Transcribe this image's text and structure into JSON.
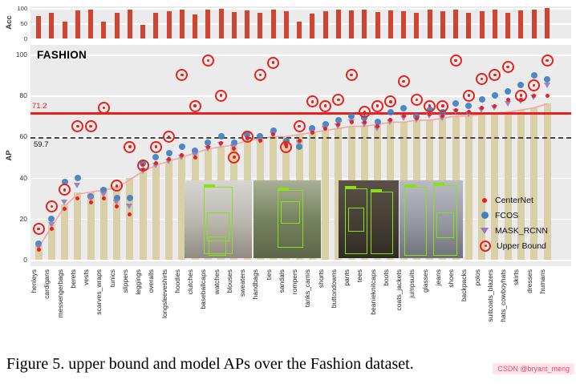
{
  "figure": {
    "caption": "Figure 5. upper bound and model APs over the Fashion dataset.",
    "watermark": "CSDN @bryant_meng"
  },
  "chart_data": {
    "type": "bar+scatter",
    "title": "FASHION",
    "ylabel": "AP",
    "ylim": [
      0,
      100
    ],
    "yticks": [
      0,
      20,
      40,
      60,
      80,
      100
    ],
    "legend_position": "center-right",
    "categories": [
      "henleys",
      "cardigans",
      "messengerbags",
      "berets",
      "vests",
      "scarves_wraps",
      "tunics",
      "slippers",
      "leggings",
      "overalls",
      "longsleeveshirts",
      "hoodies",
      "clutches",
      "baseballcaps",
      "watches",
      "blouses",
      "sweaters",
      "handbags",
      "ties",
      "sandals",
      "rompers",
      "tanks_camis",
      "shorts",
      "buttondowns",
      "pants",
      "tees",
      "beanieknitcaps",
      "boots",
      "coats_jackets",
      "jumpsuits",
      "glasses",
      "jeans",
      "shoes",
      "backpacks",
      "polos",
      "suitcoats_blazers",
      "hats_cowboyhats",
      "skirts",
      "dresses",
      "humans"
    ],
    "ap_bars": {
      "name": "per-class AP bars",
      "color": "#d9d0a8",
      "values": [
        7,
        17,
        27,
        33,
        33,
        35,
        36,
        40,
        43,
        46,
        48,
        50,
        52,
        54,
        55,
        56,
        58,
        59,
        60,
        60,
        61,
        62,
        63,
        64,
        65,
        65,
        66,
        67,
        67,
        68,
        68,
        69,
        70,
        70,
        71,
        71,
        72,
        73,
        74,
        76
      ]
    },
    "trend_line": {
      "name": "AP trend line",
      "color": "#f0a8a2",
      "values": [
        6,
        16,
        26,
        32,
        33,
        34,
        35,
        39,
        43,
        46,
        48,
        50,
        52,
        54,
        55,
        56,
        58,
        59,
        60,
        60,
        61,
        62,
        63,
        64,
        65,
        65,
        66,
        67,
        67,
        68,
        68,
        69,
        70,
        70,
        71,
        71,
        72,
        73,
        74,
        76
      ]
    },
    "series": [
      {
        "name": "CenterNet",
        "marker": "small-dot",
        "color": "#e8211d",
        "values": [
          5,
          15,
          25,
          30,
          28,
          30,
          26,
          22,
          44,
          47,
          49,
          51,
          50,
          55,
          57,
          54,
          59,
          58,
          61,
          56,
          58,
          62,
          64,
          66,
          67,
          67,
          65,
          68,
          70,
          69,
          71,
          70,
          73,
          72,
          74,
          75,
          78,
          78,
          80,
          80
        ]
      },
      {
        "name": "FCOS",
        "marker": "dot",
        "color": "#3f7fbf",
        "values": [
          8,
          20,
          38,
          40,
          31,
          34,
          30,
          30,
          47,
          50,
          52,
          55,
          53,
          57,
          60,
          57,
          61,
          60,
          63,
          58,
          55,
          64,
          66,
          68,
          70,
          69,
          67,
          72,
          74,
          70,
          73,
          72,
          76,
          75,
          78,
          80,
          82,
          85,
          90,
          88
        ]
      },
      {
        "name": "MASK_RCNN",
        "marker": "triangle-down",
        "color": "#9379c2",
        "values": [
          6,
          17,
          28,
          36,
          30,
          32,
          28,
          26,
          43,
          46,
          48,
          50,
          51,
          54,
          56,
          55,
          59,
          58,
          61,
          56,
          57,
          62,
          64,
          65,
          67,
          66,
          64,
          67,
          69,
          68,
          70,
          69,
          72,
          71,
          73,
          74,
          76,
          77,
          79,
          85
        ]
      },
      {
        "name": "Upper Bound",
        "marker": "bullseye",
        "color": "#e8211d",
        "values": [
          15,
          26,
          34,
          65,
          65,
          74,
          36,
          55,
          46,
          55,
          60,
          90,
          75,
          97,
          80,
          50,
          60,
          90,
          96,
          55,
          65,
          77,
          75,
          78,
          90,
          72,
          75,
          77,
          87,
          78,
          75,
          75,
          97,
          80,
          88,
          90,
          94,
          80,
          85,
          97
        ]
      }
    ],
    "ref_lines": [
      {
        "label": "71.2",
        "value": 71.2,
        "style": "solid",
        "color": "#e8211d"
      },
      {
        "label": "59.7",
        "value": 59.7,
        "style": "dashed",
        "color": "#111111"
      }
    ],
    "acc": {
      "label": "Acc",
      "ylim": [
        0,
        100
      ],
      "yticks": [
        0,
        50,
        100
      ],
      "color": "#cf4532",
      "values": [
        75,
        85,
        55,
        92,
        95,
        55,
        85,
        95,
        45,
        85,
        90,
        95,
        80,
        95,
        98,
        88,
        92,
        85,
        95,
        90,
        55,
        82,
        90,
        95,
        92,
        95,
        88,
        93,
        90,
        85,
        96,
        90,
        95,
        85,
        90,
        95,
        85,
        92,
        96,
        99
      ]
    }
  }
}
